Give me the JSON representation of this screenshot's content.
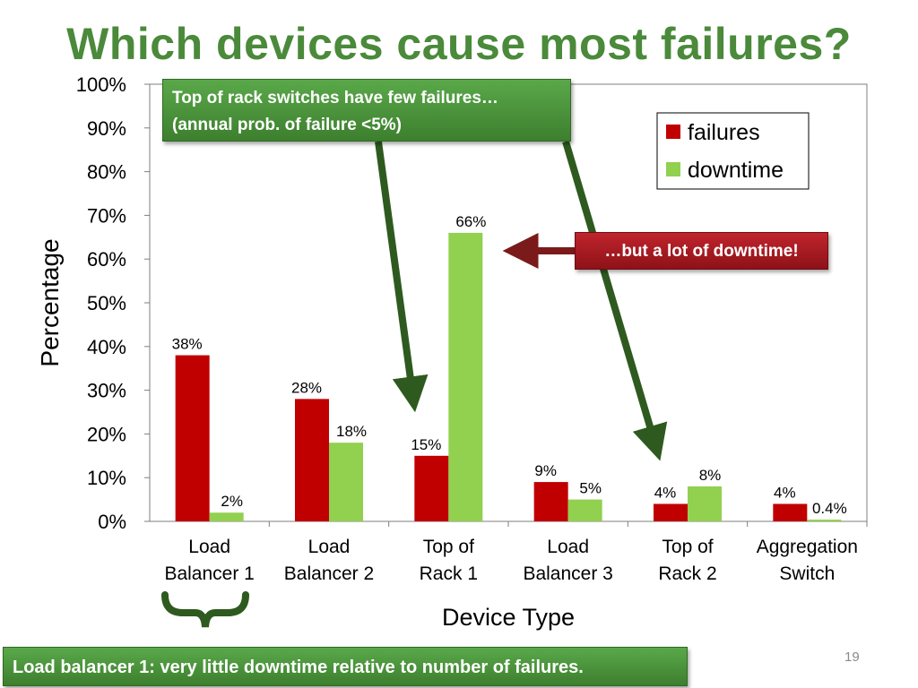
{
  "slide": {
    "title": "Which devices cause most failures?",
    "page_number": "19"
  },
  "callouts": {
    "top_line1": "Top of rack switches have few failures…",
    "top_line2": "(annual prob. of failure <5%)",
    "right": "…but a lot of downtime!",
    "bottom": "Load balancer 1: very little downtime relative to number of failures."
  },
  "colors": {
    "failures": "#c00000",
    "downtime": "#92d050",
    "title": "#4a8a3a",
    "arrow_green": "#2e5a1f",
    "arrow_red": "#7a1a1a"
  },
  "chart_data": {
    "type": "bar",
    "title": "",
    "xlabel": "Device Type",
    "ylabel": "Percentage",
    "ylim": [
      0,
      100
    ],
    "y_ticks": [
      "0%",
      "10%",
      "20%",
      "30%",
      "40%",
      "50%",
      "60%",
      "70%",
      "80%",
      "90%",
      "100%"
    ],
    "categories": [
      [
        "Load",
        "Balancer 1"
      ],
      [
        "Load",
        "Balancer 2"
      ],
      [
        "Top of",
        "Rack 1"
      ],
      [
        "Load",
        "Balancer  3"
      ],
      [
        "Top of",
        "Rack 2"
      ],
      [
        "Aggregation",
        "Switch"
      ]
    ],
    "series": [
      {
        "name": "failures",
        "values": [
          38,
          28,
          15,
          9,
          4,
          4
        ],
        "labels": [
          "38%",
          "28%",
          "15%",
          "9%",
          "4%",
          "4%"
        ]
      },
      {
        "name": "downtime",
        "values": [
          2,
          18,
          66,
          5,
          8,
          0.4
        ],
        "labels": [
          "2%",
          "18%",
          "66%",
          "5%",
          "8%",
          "0.4%"
        ]
      }
    ],
    "legend_position": "top-right",
    "grid": false
  }
}
